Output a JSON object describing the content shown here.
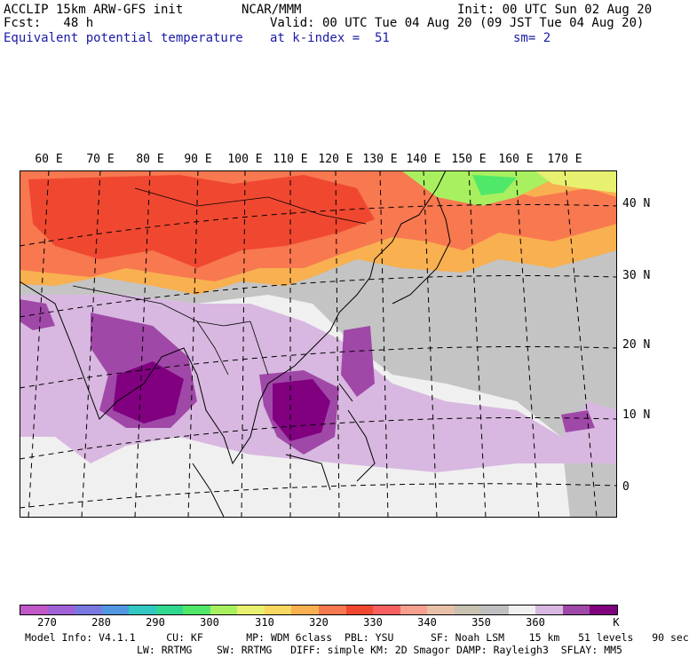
{
  "header": {
    "model": "ACCLIP 15km ARW-GFS init",
    "forecast": "Fcst:   48 h",
    "center": "NCAR/MMM",
    "init": "Init: 00 UTC Sun 02 Aug 20",
    "valid": "Valid: 00 UTC Tue 04 Aug 20 (09 JST Tue 04 Aug 20)",
    "field_name": "Equivalent potential temperature",
    "level": "at k-index =  51",
    "smoothing": "sm= 2"
  },
  "map": {
    "lon_labels": [
      "60 E",
      "70 E",
      "80 E",
      "90 E",
      "100 E",
      "110 E",
      "120 E",
      "130 E",
      "140 E",
      "150 E",
      "160 E",
      "170 E"
    ],
    "lat_labels": [
      "40 N",
      "30 N",
      "20 N",
      "10 N",
      "0"
    ]
  },
  "colorbar": {
    "colors": [
      "#c058c8",
      "#a060d8",
      "#7878e0",
      "#5096e0",
      "#30c8c0",
      "#30d890",
      "#50e868",
      "#a8f060",
      "#e8f070",
      "#f8d860",
      "#f8b050",
      "#f87850",
      "#f04830",
      "#f86060",
      "#f8a090",
      "#e8c0a8",
      "#c8c0b0",
      "#c0c0c0",
      "#f0f0f0",
      "#d8b8e0",
      "#a048a8",
      "#800080"
    ],
    "labels": [
      "270",
      "280",
      "290",
      "300",
      "310",
      "320",
      "330",
      "340",
      "350",
      "360"
    ],
    "unit": "K"
  },
  "footer": {
    "line1": "Model Info: V4.1.1     CU: KF       MP: WDM 6class  PBL: YSU      SF: Noah LSM    15 km   51 levels   90 sec",
    "line2": "LW: RRTMG    SW: RRTMG   DIFF: simple KM: 2D Smagor DAMP: Rayleigh3  SFLAY: MM5"
  }
}
